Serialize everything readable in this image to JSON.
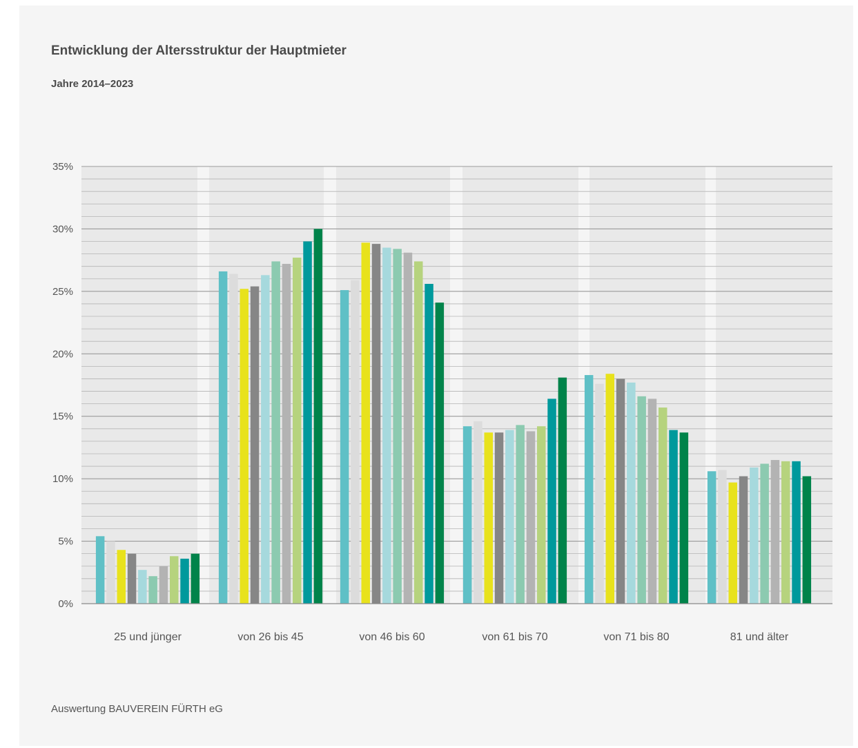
{
  "header": {
    "title": "Entwicklung der Altersstruktur der Hauptmieter",
    "subtitle": "Jahre 2014–2023"
  },
  "footer": {
    "source": "Auswertung BAUVEREIN FÜRTH eG"
  },
  "colors": {
    "background": "#f5f5f5",
    "band": "#e9e9e9",
    "gridline": "#aaaaaa",
    "series": [
      "#5fc0c6",
      "#dcdcdc",
      "#e8e21c",
      "#868686",
      "#a6d9dd",
      "#8ccab0",
      "#b3b3b3",
      "#b6d37e",
      "#00999c",
      "#00834a"
    ]
  },
  "chart_data": {
    "type": "bar",
    "title": "Entwicklung der Altersstruktur der Hauptmieter",
    "subtitle": "Jahre 2014–2023",
    "xlabel": "",
    "ylabel": "",
    "ylim": [
      0,
      35
    ],
    "yticks": [
      0,
      5,
      10,
      15,
      20,
      25,
      30,
      35
    ],
    "ytick_labels": [
      "0%",
      "5%",
      "10%",
      "15%",
      "20%",
      "25%",
      "30%",
      "35%"
    ],
    "grid": true,
    "legend": "none",
    "categories": [
      "25 und jünger",
      "von 26 bis 45",
      "von 46 bis 60",
      "von 61 bis 70",
      "von 71 bis 80",
      "81 und älter"
    ],
    "series": [
      {
        "values": [
          5.4,
          26.6,
          25.1,
          14.2,
          18.3,
          10.6
        ]
      },
      {
        "values": [
          5.0,
          26.4,
          25.9,
          14.6,
          17.6,
          10.7
        ]
      },
      {
        "values": [
          4.3,
          25.2,
          28.9,
          13.7,
          18.4,
          9.7
        ]
      },
      {
        "values": [
          4.0,
          25.4,
          28.8,
          13.7,
          18.0,
          10.2
        ]
      },
      {
        "values": [
          2.7,
          26.3,
          28.5,
          13.9,
          17.7,
          10.9
        ]
      },
      {
        "values": [
          2.2,
          27.4,
          28.4,
          14.3,
          16.6,
          11.2
        ]
      },
      {
        "values": [
          3.0,
          27.2,
          28.1,
          13.8,
          16.4,
          11.5
        ]
      },
      {
        "values": [
          3.8,
          27.7,
          27.4,
          14.2,
          15.7,
          11.4
        ]
      },
      {
        "values": [
          3.6,
          29.0,
          25.6,
          16.4,
          13.9,
          11.4
        ]
      },
      {
        "values": [
          4.0,
          30.0,
          24.1,
          18.1,
          13.7,
          10.2
        ]
      }
    ]
  }
}
